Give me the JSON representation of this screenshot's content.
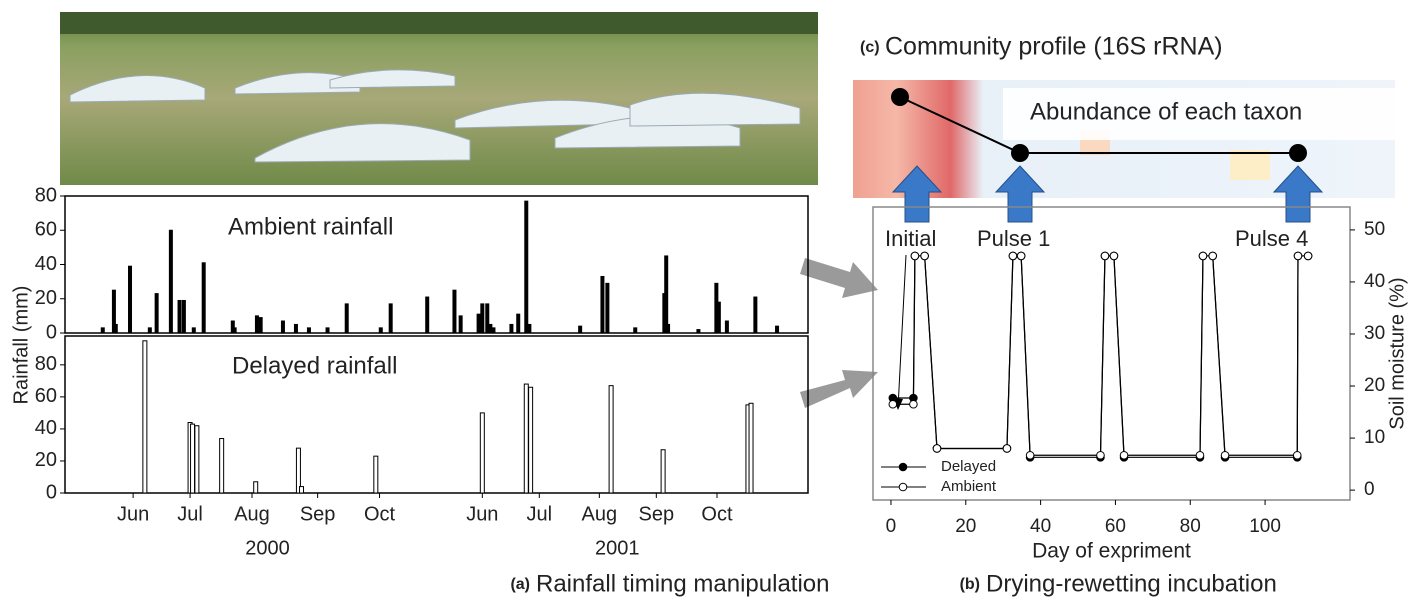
{
  "chart_data": [
    {
      "type": "bar",
      "annotation": "Ambient rainfall",
      "ylabel": "Rainfall (mm)",
      "x": [
        0.61,
        0.79,
        0.82,
        1.05,
        1.37,
        1.48,
        1.71,
        1.85,
        1.92,
        2.08,
        2.24,
        2.71,
        2.74,
        3.1,
        3.16,
        3.52,
        3.73,
        3.94,
        4.24,
        4.55,
        5.1,
        5.26,
        5.85,
        6.29,
        6.39,
        6.68,
        6.74,
        6.82,
        6.87,
        6.92,
        7.21,
        7.32,
        7.45,
        7.5,
        8.32,
        8.68,
        8.76,
        9.21,
        9.68,
        9.71,
        9.74,
        10.23,
        10.52,
        10.56,
        10.69,
        11.15,
        11.5
      ],
      "values": [
        3,
        25,
        5,
        39,
        3,
        23,
        60,
        19,
        19,
        3,
        41,
        7,
        3,
        10,
        9,
        7,
        5,
        3,
        3,
        17,
        3,
        17,
        21,
        25,
        10,
        11,
        17,
        17,
        5,
        3,
        5,
        11,
        77,
        5,
        4,
        33,
        29,
        3,
        23,
        45,
        5,
        2,
        29,
        18,
        7,
        21,
        4
      ],
      "color": "#000000",
      "xlim": [
        0,
        12
      ],
      "ylim": [
        0,
        80
      ],
      "yticks": [
        0,
        20,
        40,
        60,
        80
      ]
    },
    {
      "type": "bar",
      "annotation": "Delayed rainfall",
      "x": [
        1.29,
        2.02,
        2.06,
        2.13,
        2.53,
        3.08,
        3.77,
        3.82,
        5.02,
        6.74,
        7.45,
        7.52,
        8.82,
        9.66,
        11.03,
        11.08
      ],
      "values": [
        95,
        44,
        43,
        42,
        34,
        7,
        28,
        4,
        23,
        50,
        68,
        66,
        67,
        27,
        55,
        56
      ],
      "color": "#000000",
      "fill": "#ffffff",
      "xlim": [
        0,
        12
      ],
      "ylim": [
        0,
        98
      ],
      "yticks": [
        0,
        20,
        40,
        60,
        80
      ],
      "xticks": [
        {
          "value": 1.1,
          "label": "Jun"
        },
        {
          "value": 2.02,
          "label": "Jul"
        },
        {
          "value": 3.02,
          "label": "Aug"
        },
        {
          "value": 4.08,
          "label": "Sep"
        },
        {
          "value": 5.08,
          "label": "Oct"
        },
        {
          "value": 6.74,
          "label": "Jun"
        },
        {
          "value": 7.66,
          "label": "Jul"
        },
        {
          "value": 8.63,
          "label": "Aug"
        },
        {
          "value": 9.55,
          "label": "Sep"
        },
        {
          "value": 10.53,
          "label": "Oct"
        }
      ],
      "x_groups": [
        {
          "value": 3.27,
          "label": "2000"
        },
        {
          "value": 8.92,
          "label": "2001"
        }
      ],
      "caption": {
        "label": "(a)",
        "text": "Rainfall timing manipulation"
      }
    },
    {
      "type": "line",
      "xlabel": "Day of expriment",
      "ylabel": "Soil moisture (%)",
      "x": [
        0.5,
        6,
        6.4,
        9,
        12.3,
        31,
        32.6,
        34.8,
        37.2,
        56,
        57.2,
        59.6,
        62.3,
        82.6,
        83.4,
        86,
        89.3,
        108.6,
        108.8,
        111.5
      ],
      "series": [
        {
          "name": "Delayed",
          "color": "#000000",
          "marker": "filled",
          "values": [
            17.7,
            17.7,
            45,
            45,
            8,
            8,
            45,
            45,
            6.3,
            6.3,
            45,
            45,
            6.3,
            6.3,
            45,
            45,
            6.3,
            6.3,
            45,
            45
          ]
        },
        {
          "name": "Ambient",
          "color": "#000000",
          "marker": "open",
          "values": [
            16.5,
            16.5,
            45,
            45,
            8,
            8,
            45,
            45,
            6.7,
            6.7,
            45,
            45,
            6.7,
            6.7,
            45,
            45,
            6.7,
            6.7,
            45,
            45
          ]
        }
      ],
      "xlim": [
        -4.8,
        122.7
      ],
      "ylim": [
        -1.9,
        54.4
      ],
      "xticks": [
        0,
        20,
        40,
        60,
        80,
        100
      ],
      "yticks": [
        0,
        10,
        20,
        30,
        40,
        50
      ],
      "legend": "lower left",
      "annotations": [
        "Initial",
        "Pulse 1",
        "Pulse 4"
      ],
      "caption": {
        "label": "(b)",
        "text": "Drying-rewetting incubation"
      }
    }
  ],
  "community_profile": {
    "label": "(c)",
    "title": "Community profile (16S rRNA)",
    "annotation": "Abundance of each taxon"
  }
}
